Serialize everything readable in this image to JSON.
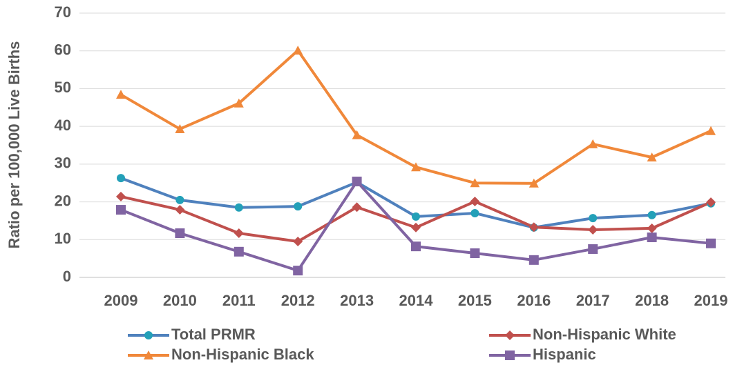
{
  "chart_data": {
    "type": "line",
    "y_label": "Ratio per 100,000 Live Births",
    "categories": [
      "2009",
      "2010",
      "2011",
      "2012",
      "2013",
      "2014",
      "2015",
      "2016",
      "2017",
      "2018",
      "2019"
    ],
    "series": [
      {
        "name": "Total PRMR",
        "color": "#4f81bd",
        "marker_color": "#23a0b8",
        "marker": "circle",
        "values": [
          26.3,
          20.5,
          18.5,
          18.8,
          25.2,
          16.1,
          17.0,
          13.2,
          15.7,
          16.5,
          19.6
        ]
      },
      {
        "name": "Non-Hispanic White",
        "color": "#c0504d",
        "marker_color": "#c0504d",
        "marker": "diamond",
        "values": [
          21.4,
          17.9,
          11.7,
          9.5,
          18.6,
          13.2,
          20.1,
          13.3,
          12.6,
          13.0,
          19.9
        ]
      },
      {
        "name": "Non-Hispanic Black",
        "color": "#f0883a",
        "marker_color": "#f0883a",
        "marker": "triangle",
        "values": [
          48.4,
          39.3,
          46.1,
          60.1,
          37.7,
          29.2,
          25.0,
          24.9,
          35.3,
          31.8,
          38.8
        ]
      },
      {
        "name": "Hispanic",
        "color": "#8064a2",
        "marker_color": "#8064a2",
        "marker": "square",
        "values": [
          17.9,
          11.7,
          6.8,
          1.8,
          25.4,
          8.2,
          6.4,
          4.6,
          7.5,
          10.6,
          9.0
        ]
      }
    ],
    "ylim": [
      0,
      70
    ],
    "yticks": [
      0,
      10,
      20,
      30,
      40,
      50,
      60,
      70
    ],
    "grid": true
  }
}
